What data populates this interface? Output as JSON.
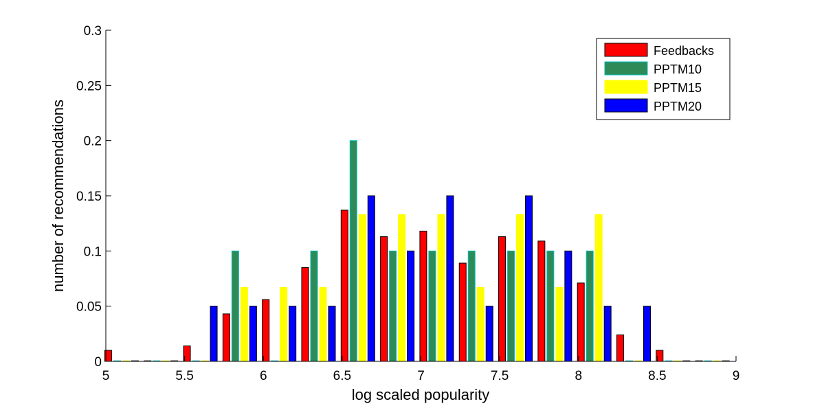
{
  "chart_data": {
    "type": "bar",
    "xlabel": "log scaled popularity",
    "ylabel": "number of recommendations",
    "xlim": [
      5,
      9
    ],
    "ylim": [
      0,
      0.3
    ],
    "x_ticks": [
      "5",
      "5.5",
      "6",
      "6.5",
      "7",
      "7.5",
      "8",
      "8.5",
      "9"
    ],
    "y_ticks": [
      "0",
      "0.05",
      "0.1",
      "0.15",
      "0.2",
      "0.25",
      "0.3"
    ],
    "bin_centers": [
      5.1,
      5.35,
      5.6,
      5.85,
      6.1,
      6.35,
      6.6,
      6.85,
      7.1,
      7.35,
      7.6,
      7.85,
      8.1,
      8.35,
      8.6,
      8.85
    ],
    "legend_position": "top-right",
    "series": [
      {
        "name": "Feedbacks",
        "color": "#ff0000",
        "edge": "#000000",
        "values": [
          0.01,
          0,
          0.014,
          0.043,
          0.056,
          0.085,
          0.137,
          0.113,
          0.118,
          0.089,
          0.113,
          0.109,
          0.071,
          0.024,
          0.01,
          0
        ]
      },
      {
        "name": "PPTM10",
        "color": "#2e8b57",
        "edge": "#00bfbf",
        "values": [
          0,
          0,
          0,
          0.1,
          0,
          0.1,
          0.2,
          0.1,
          0.1,
          0.1,
          0.1,
          0.1,
          0.1,
          0,
          0,
          0
        ]
      },
      {
        "name": "PPTM15",
        "color": "#ffff00",
        "edge": "#ffff00",
        "values": [
          0,
          0,
          0,
          0.067,
          0.067,
          0.067,
          0.133,
          0.133,
          0.133,
          0.067,
          0.133,
          0.067,
          0.133,
          0,
          0,
          0
        ]
      },
      {
        "name": "PPTM20",
        "color": "#0000ff",
        "edge": "#000000",
        "values": [
          0,
          0,
          0.05,
          0.05,
          0.05,
          0.05,
          0.15,
          0.1,
          0.15,
          0.05,
          0.15,
          0.1,
          0.05,
          0.05,
          0,
          0
        ]
      }
    ]
  }
}
